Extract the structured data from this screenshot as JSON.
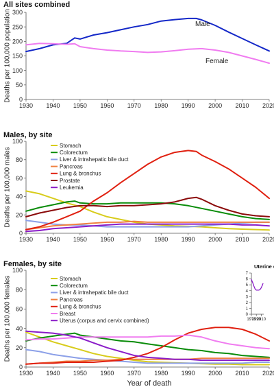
{
  "x_axis_label": "Year of death",
  "chart_data": [
    {
      "type": "line",
      "title": "All sites combined",
      "xlabel": "",
      "ylabel": "Deaths per 100,000 population",
      "xlim": [
        1930,
        2020
      ],
      "ylim": [
        0,
        300
      ],
      "x_ticks": [
        1930,
        1940,
        1950,
        1960,
        1970,
        1980,
        1990,
        2000,
        2010,
        2020
      ],
      "y_ticks": [
        0,
        50,
        100,
        150,
        200,
        250,
        300
      ],
      "legend": "inline labels",
      "series": [
        {
          "name": "Male",
          "color": "#1428c8",
          "x": [
            1930,
            1935,
            1940,
            1945,
            1948,
            1950,
            1955,
            1960,
            1965,
            1970,
            1975,
            1980,
            1985,
            1990,
            1993,
            1995,
            2000,
            2005,
            2010,
            2015,
            2020
          ],
          "y": [
            165,
            175,
            188,
            193,
            212,
            208,
            222,
            230,
            240,
            250,
            258,
            270,
            275,
            279,
            279,
            274,
            255,
            232,
            210,
            188,
            167
          ]
        },
        {
          "name": "Female",
          "color": "#f07cf0",
          "x": [
            1930,
            1935,
            1940,
            1945,
            1948,
            1950,
            1955,
            1960,
            1965,
            1970,
            1975,
            1980,
            1985,
            1990,
            1995,
            2000,
            2005,
            2010,
            2015,
            2020
          ],
          "y": [
            188,
            193,
            192,
            190,
            192,
            182,
            175,
            170,
            167,
            165,
            162,
            164,
            168,
            173,
            175,
            170,
            162,
            150,
            138,
            125
          ]
        }
      ]
    },
    {
      "type": "line",
      "title": "Males, by site",
      "xlabel": "",
      "ylabel": "Deaths per 100,000 males",
      "xlim": [
        1930,
        2020
      ],
      "ylim": [
        0,
        100
      ],
      "x_ticks": [
        1930,
        1940,
        1950,
        1960,
        1970,
        1980,
        1990,
        2000,
        2010,
        2020
      ],
      "y_ticks": [
        0,
        20,
        40,
        60,
        80,
        100
      ],
      "legend": "top-left",
      "series": [
        {
          "name": "Stomach",
          "color": "#d8cc1c",
          "x": [
            1930,
            1935,
            1940,
            1945,
            1950,
            1955,
            1960,
            1965,
            1970,
            1975,
            1980,
            1985,
            1990,
            1995,
            2000,
            2005,
            2010,
            2015,
            2020
          ],
          "y": [
            46,
            43,
            38,
            33,
            29,
            23,
            18,
            15,
            12,
            10,
            9,
            8,
            7.5,
            7,
            6,
            5,
            4.5,
            4,
            3.5
          ]
        },
        {
          "name": "Colorectum",
          "color": "#0a8c0a",
          "x": [
            1930,
            1935,
            1940,
            1945,
            1948,
            1950,
            1955,
            1960,
            1965,
            1970,
            1975,
            1980,
            1985,
            1990,
            1995,
            2000,
            2005,
            2010,
            2015,
            2020
          ],
          "y": [
            24,
            28,
            31,
            34,
            35,
            33,
            32,
            32,
            33,
            33,
            33,
            33,
            32,
            30,
            27,
            24,
            21,
            18,
            16,
            15
          ]
        },
        {
          "name": "Liver & intrahepatic bile duct",
          "color": "#8ca0e8",
          "x": [
            1930,
            1935,
            1940,
            1945,
            1950,
            1955,
            1960,
            1965,
            1970,
            1975,
            1980,
            1985,
            1990,
            1995,
            2000,
            2005,
            2010,
            2015,
            2020
          ],
          "y": [
            14,
            12,
            10,
            9,
            9,
            8,
            7,
            7,
            7,
            7,
            7,
            7,
            7,
            8,
            9,
            10,
            11,
            12,
            12
          ]
        },
        {
          "name": "Pancreas",
          "color": "#f08040",
          "x": [
            1930,
            1935,
            1940,
            1945,
            1950,
            1955,
            1960,
            1965,
            1970,
            1975,
            1980,
            1985,
            1990,
            1995,
            2000,
            2005,
            2010,
            2015,
            2020
          ],
          "y": [
            4,
            6,
            8,
            9,
            10,
            11,
            12,
            12,
            13,
            12,
            12,
            12,
            12,
            12,
            12,
            12,
            12,
            12,
            12
          ]
        },
        {
          "name": "Lung & bronchus",
          "color": "#e02010",
          "x": [
            1930,
            1935,
            1940,
            1945,
            1950,
            1955,
            1960,
            1965,
            1970,
            1975,
            1980,
            1985,
            1990,
            1993,
            1995,
            2000,
            2005,
            2010,
            2015,
            2020
          ],
          "y": [
            4,
            7,
            12,
            18,
            24,
            35,
            44,
            55,
            65,
            75,
            83,
            88,
            90,
            89,
            85,
            78,
            70,
            60,
            50,
            38
          ]
        },
        {
          "name": "Prostate",
          "color": "#8b0a0a",
          "x": [
            1930,
            1935,
            1940,
            1945,
            1950,
            1955,
            1960,
            1965,
            1970,
            1975,
            1980,
            1985,
            1990,
            1993,
            1995,
            2000,
            2005,
            2010,
            2015,
            2020
          ],
          "y": [
            18,
            22,
            25,
            28,
            30,
            30,
            29,
            30,
            30,
            31,
            32,
            34,
            38,
            39,
            37,
            30,
            25,
            21,
            19,
            18
          ]
        },
        {
          "name": "Leukemia",
          "color": "#8a1cc8",
          "x": [
            1930,
            1935,
            1940,
            1945,
            1950,
            1955,
            1960,
            1965,
            1970,
            1975,
            1980,
            1985,
            1990,
            1995,
            2000,
            2005,
            2010,
            2015,
            2020
          ],
          "y": [
            2,
            3,
            5,
            6,
            7,
            8,
            9,
            10,
            10,
            10,
            10,
            10,
            10,
            10,
            10,
            10,
            9,
            9,
            8
          ]
        }
      ]
    },
    {
      "type": "line",
      "title": "Females, by site",
      "xlabel": "Year of death",
      "ylabel": "Deaths per 100,000 females",
      "xlim": [
        1930,
        2020
      ],
      "ylim": [
        0,
        100
      ],
      "x_ticks": [
        1930,
        1940,
        1950,
        1960,
        1970,
        1980,
        1990,
        2000,
        2010,
        2020
      ],
      "y_ticks": [
        0,
        20,
        40,
        60,
        80,
        100
      ],
      "legend": "top-left",
      "series": [
        {
          "name": "Stomach",
          "color": "#d8cc1c",
          "x": [
            1930,
            1935,
            1940,
            1945,
            1950,
            1955,
            1960,
            1965,
            1970,
            1975,
            1980,
            1985,
            1990,
            1995,
            2000,
            2005,
            2010,
            2015,
            2020
          ],
          "y": [
            36,
            31,
            26,
            22,
            18,
            14,
            11,
            9,
            7,
            5.5,
            5,
            4.5,
            4,
            3.5,
            3,
            3,
            2.5,
            2.5,
            2.5
          ]
        },
        {
          "name": "Colorectum",
          "color": "#0a8c0a",
          "x": [
            1930,
            1935,
            1940,
            1945,
            1948,
            1950,
            1955,
            1960,
            1965,
            1970,
            1975,
            1980,
            1985,
            1990,
            1995,
            2000,
            2005,
            2010,
            2015,
            2020
          ],
          "y": [
            27,
            30,
            32,
            34,
            35,
            33,
            31,
            29,
            27,
            26,
            24,
            22,
            20,
            18,
            17,
            15,
            14,
            12,
            11,
            10
          ]
        },
        {
          "name": "Liver & intrahepatic bile duct",
          "color": "#8ca0e8",
          "x": [
            1930,
            1935,
            1940,
            1945,
            1950,
            1955,
            1960,
            1965,
            1970,
            1975,
            1980,
            1985,
            1990,
            1995,
            2000,
            2005,
            2010,
            2015,
            2020
          ],
          "y": [
            18,
            16,
            13,
            11,
            9,
            8,
            7,
            6,
            5,
            4,
            4,
            4,
            4,
            4,
            4,
            4,
            4,
            5,
            5
          ]
        },
        {
          "name": "Pancreas",
          "color": "#f08040",
          "x": [
            1930,
            1935,
            1940,
            1945,
            1950,
            1955,
            1960,
            1965,
            1970,
            1975,
            1980,
            1985,
            1990,
            1995,
            2000,
            2005,
            2010,
            2015,
            2020
          ],
          "y": [
            3,
            4,
            5,
            6,
            6,
            7,
            7,
            8,
            8,
            8,
            8,
            8,
            8,
            9,
            9,
            9,
            9,
            9,
            9
          ]
        },
        {
          "name": "Lung & bronchus",
          "color": "#e02010",
          "x": [
            1930,
            1935,
            1940,
            1945,
            1950,
            1955,
            1960,
            1965,
            1970,
            1975,
            1980,
            1985,
            1990,
            1995,
            2000,
            2003,
            2005,
            2010,
            2015,
            2020
          ],
          "y": [
            3,
            4,
            4,
            5,
            5,
            5,
            6,
            7,
            10,
            14,
            20,
            28,
            35,
            39,
            41,
            41,
            41,
            39,
            34,
            27
          ]
        },
        {
          "name": "Breast",
          "color": "#f07cf0",
          "x": [
            1930,
            1935,
            1940,
            1945,
            1950,
            1955,
            1960,
            1965,
            1970,
            1975,
            1980,
            1985,
            1990,
            1995,
            2000,
            2005,
            2010,
            2015,
            2020
          ],
          "y": [
            28,
            29,
            29,
            30,
            31,
            31,
            31,
            31,
            31,
            31,
            32,
            32,
            33,
            31,
            27,
            24,
            22,
            20,
            19
          ]
        },
        {
          "name": "Uterus (corpus and cervix combined)",
          "color": "#8a1cc8",
          "x": [
            1930,
            1935,
            1940,
            1945,
            1950,
            1955,
            1960,
            1965,
            1970,
            1975,
            1980,
            1985,
            1990,
            1995,
            2000,
            2005,
            2010,
            2015,
            2020
          ],
          "y": [
            37,
            36,
            35,
            33,
            30,
            25,
            20,
            16,
            12,
            10,
            9,
            8,
            8,
            7,
            7,
            7,
            7,
            7,
            7
          ]
        }
      ]
    },
    {
      "type": "line",
      "title": "Uterine corpus",
      "xlabel": "",
      "ylabel": "",
      "xlim": [
        1970,
        2020
      ],
      "ylim": [
        0,
        7
      ],
      "x_ticks": [
        1970,
        1990,
        2010
      ],
      "y_ticks": [
        0,
        1,
        2,
        3,
        4,
        5,
        6,
        7
      ],
      "legend": "none",
      "series": [
        {
          "color": "#8a1cc8",
          "x": [
            1970,
            1975,
            1980,
            1985,
            1990,
            1995,
            2000,
            2005,
            2010,
            2013,
            2015,
            2017
          ],
          "y": [
            5.9,
            5.4,
            4.8,
            4.3,
            4.1,
            4.1,
            4.1,
            4.2,
            4.5,
            4.8,
            5.0,
            5.2
          ]
        }
      ]
    }
  ]
}
